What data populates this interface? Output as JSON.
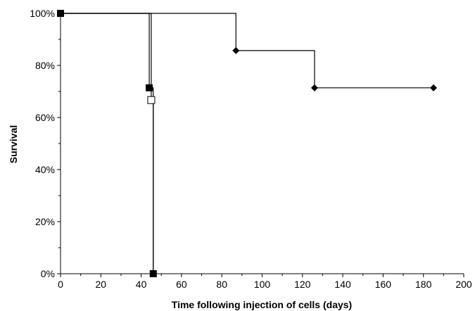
{
  "chart_data": {
    "type": "line",
    "step": true,
    "xlabel": "Time following injection of cells (days)",
    "ylabel": "Survival",
    "xlim": [
      0,
      200
    ],
    "ylim": [
      0,
      100
    ],
    "x_ticks": [
      0,
      20,
      40,
      60,
      80,
      100,
      120,
      140,
      160,
      180,
      200
    ],
    "y_ticks": [
      0,
      20,
      40,
      60,
      80,
      100
    ],
    "x_tick_labels": [
      "0",
      "20",
      "40",
      "60",
      "80",
      "100",
      "120",
      "140",
      "160",
      "180",
      "200"
    ],
    "y_tick_labels": [
      "0%",
      "20%",
      "40%",
      "60%",
      "80%",
      "100%"
    ],
    "grid": false,
    "series": [
      {
        "marker": "diamond-filled",
        "points": [
          [
            0,
            100
          ],
          [
            87,
            85.7
          ],
          [
            126,
            71.4
          ],
          [
            185,
            71.4
          ]
        ],
        "marked_points": [
          [
            87,
            85.7
          ],
          [
            126,
            71.4
          ],
          [
            185,
            71.4
          ]
        ]
      },
      {
        "marker": "square-filled",
        "points": [
          [
            0,
            100
          ],
          [
            44,
            71.4
          ],
          [
            46,
            0
          ]
        ],
        "marked_points": [
          [
            0,
            100
          ],
          [
            44,
            71.4
          ],
          [
            46,
            0
          ]
        ]
      },
      {
        "marker": "square-open",
        "points": [
          [
            0,
            100
          ],
          [
            45,
            66.7
          ],
          [
            46,
            0
          ]
        ],
        "marked_points": [
          [
            45,
            66.7
          ]
        ]
      }
    ],
    "colors": {
      "line": "#000000",
      "axis": "#000000",
      "background": "#ffffff"
    }
  }
}
